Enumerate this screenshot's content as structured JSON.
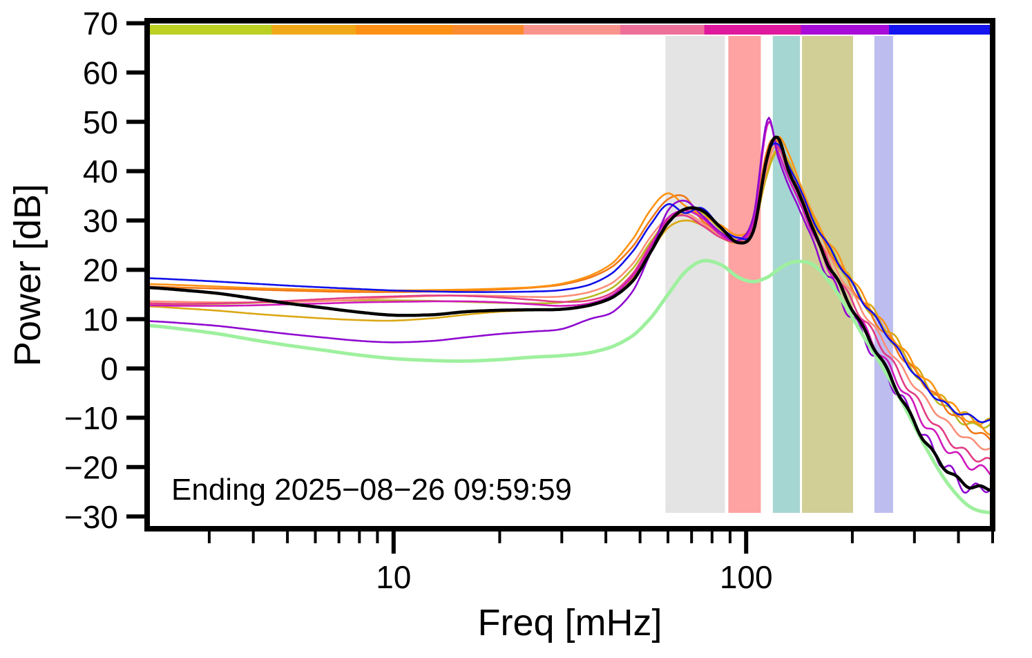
{
  "figure": {
    "background": "#ffffff",
    "frame_color": "#000000"
  },
  "chart_data": {
    "type": "line",
    "title": "",
    "xlabel": "Freq [mHz]",
    "ylabel": "Power [dB]",
    "annotation": "Ending 2025−08−26 09:59:59",
    "xscale": "log",
    "grid": false,
    "legend": "none",
    "xlim": [
      2,
      500
    ],
    "ylim": [
      -32.5,
      70.5
    ],
    "yticks": [
      70,
      60,
      50,
      40,
      30,
      20,
      10,
      0,
      -10,
      -20,
      -30
    ],
    "xticks": [
      10,
      100
    ],
    "x_minor_ticks": [
      3,
      4,
      5,
      6,
      7,
      8,
      9,
      20,
      30,
      40,
      50,
      60,
      70,
      80,
      90,
      200,
      300,
      400,
      500
    ],
    "colorbar_segments": [
      {
        "color": "#bcd021",
        "w": 0.145
      },
      {
        "color": "#f0a816",
        "w": 0.1
      },
      {
        "color": "#ff9013",
        "w": 0.115
      },
      {
        "color": "#fb8b2e",
        "w": 0.085
      },
      {
        "color": "#f9948d",
        "w": 0.115
      },
      {
        "color": "#ef6f9b",
        "w": 0.1
      },
      {
        "color": "#e0189d",
        "w": 0.115
      },
      {
        "color": "#a80cd8",
        "w": 0.105
      },
      {
        "color": "#1414f0",
        "w": 0.12
      }
    ],
    "bands": [
      {
        "fmin": 59,
        "fmax": 87,
        "color": "#e4e4e4"
      },
      {
        "fmin": 89,
        "fmax": 110,
        "color": "#ffa2a2"
      },
      {
        "fmin": 119,
        "fmax": 142,
        "color": "#a5d6d2"
      },
      {
        "fmin": 144,
        "fmax": 201,
        "color": "#d1ce96"
      },
      {
        "fmin": 231,
        "fmax": 261,
        "color": "#bdbdf0"
      }
    ],
    "x_mhz": [
      2,
      2.5,
      3.2,
      4,
      5,
      6.5,
      8,
      10,
      13,
      16,
      20,
      25,
      30,
      36,
      42,
      48,
      54,
      60,
      67,
      75,
      85,
      95,
      105,
      115,
      123,
      132,
      142,
      155,
      170,
      190,
      215,
      245,
      280,
      320,
      370,
      430,
      500
    ],
    "series": [
      {
        "name": "olive",
        "color": "#b9ba25",
        "width": 2.6,
        "ripple": 0.6,
        "values": [
          12.9,
          13.0,
          13.1,
          13.3,
          13.5,
          13.7,
          13.8,
          13.8,
          13.7,
          13.5,
          13.3,
          13.2,
          13.4,
          14.5,
          16.5,
          20.5,
          26.0,
          30.0,
          31.5,
          31.5,
          28.0,
          26.0,
          28.5,
          39.5,
          44.0,
          41.5,
          36.5,
          30.5,
          25.0,
          19.5,
          13.5,
          8.0,
          2.5,
          -3.5,
          -8.0,
          -11.5,
          -11.2
        ]
      },
      {
        "name": "goldenrod",
        "color": "#dba713",
        "width": 2.6,
        "ripple": 0.8,
        "values": [
          12.6,
          12.2,
          11.7,
          11.1,
          10.6,
          10.1,
          9.8,
          9.7,
          10.2,
          10.9,
          11.5,
          11.8,
          12.0,
          13.0,
          15.0,
          18.5,
          24.0,
          28.5,
          30.0,
          29.0,
          26.5,
          25.5,
          28.0,
          40.0,
          44.5,
          42.0,
          36.0,
          29.5,
          24.5,
          19.5,
          14.0,
          9.0,
          3.5,
          -2.5,
          -7.0,
          -10.0,
          -11.0
        ]
      },
      {
        "name": "orange-dark",
        "color": "#f07818",
        "width": 2.6,
        "ripple": 0.6,
        "values": [
          16.6,
          16.4,
          16.2,
          16.0,
          15.8,
          15.6,
          15.5,
          15.5,
          15.6,
          15.8,
          16.0,
          16.4,
          17.0,
          18.4,
          20.8,
          25.0,
          30.5,
          34.3,
          34.8,
          30.0,
          27.5,
          26.0,
          30.5,
          44.5,
          46.0,
          40.0,
          36.0,
          29.5,
          24.5,
          19.0,
          13.0,
          7.5,
          2.0,
          -3.0,
          -8.0,
          -12.0,
          -14.5
        ]
      },
      {
        "name": "orange",
        "color": "#ff9212",
        "width": 2.6,
        "ripple": 0.6,
        "values": [
          17.1,
          16.9,
          16.6,
          16.3,
          16.1,
          15.9,
          15.8,
          15.8,
          15.9,
          16.0,
          16.2,
          16.5,
          17.2,
          18.8,
          21.5,
          26.5,
          32.5,
          35.5,
          33.0,
          31.0,
          29.0,
          27.0,
          29.5,
          42.0,
          47.0,
          43.5,
          37.5,
          31.0,
          26.0,
          20.5,
          14.5,
          9.0,
          3.5,
          -2.0,
          -6.5,
          -10.5,
          -13.0
        ]
      },
      {
        "name": "salmon",
        "color": "#fb8e78",
        "width": 2.6,
        "ripple": 0.5,
        "values": [
          13.6,
          13.5,
          13.4,
          13.4,
          13.5,
          13.7,
          14.0,
          14.4,
          14.7,
          14.8,
          14.7,
          14.5,
          14.6,
          15.5,
          17.5,
          21.5,
          27.0,
          30.5,
          31.5,
          29.5,
          27.0,
          25.5,
          28.5,
          41.0,
          45.5,
          40.5,
          35.0,
          28.5,
          23.0,
          17.5,
          11.5,
          5.5,
          -0.5,
          -6.0,
          -11.0,
          -14.5,
          -16.5
        ]
      },
      {
        "name": "pink",
        "color": "#e23d85",
        "width": 2.6,
        "ripple": 0.7,
        "values": [
          13.2,
          13.1,
          13.2,
          13.4,
          13.7,
          14.1,
          14.4,
          14.6,
          14.8,
          14.7,
          14.4,
          13.9,
          13.5,
          13.8,
          15.5,
          19.5,
          25.5,
          30.0,
          31.0,
          29.0,
          26.5,
          25.8,
          29.0,
          43.5,
          45.0,
          39.5,
          34.5,
          28.0,
          22.0,
          16.0,
          10.0,
          4.0,
          -2.5,
          -8.5,
          -14.0,
          -17.5,
          -19.0
        ]
      },
      {
        "name": "magenta",
        "color": "#cf18bc",
        "width": 2.6,
        "ripple": 0.9,
        "values": [
          12.8,
          12.7,
          12.7,
          12.8,
          13.0,
          13.2,
          13.4,
          13.5,
          13.6,
          13.6,
          13.4,
          13.0,
          12.7,
          13.2,
          15.0,
          19.0,
          25.0,
          30.5,
          32.0,
          30.5,
          27.0,
          26.0,
          30.0,
          49.5,
          44.0,
          38.5,
          33.5,
          27.0,
          21.0,
          15.0,
          8.5,
          2.0,
          -4.5,
          -11.0,
          -16.0,
          -19.5,
          -21.0
        ]
      },
      {
        "name": "purple",
        "color": "#8f0ad0",
        "width": 2.6,
        "ripple": 1.3,
        "values": [
          9.6,
          9.2,
          8.6,
          7.8,
          7.0,
          6.2,
          5.6,
          5.3,
          5.6,
          6.3,
          7.0,
          7.5,
          8.0,
          10.0,
          11.5,
          16.0,
          24.0,
          32.0,
          34.0,
          31.0,
          27.5,
          26.0,
          31.0,
          50.5,
          43.0,
          37.0,
          32.0,
          25.5,
          19.0,
          13.0,
          6.5,
          0.0,
          -7.0,
          -14.0,
          -20.0,
          -24.5,
          -23.5
        ]
      },
      {
        "name": "blue",
        "color": "#1010e8",
        "width": 2.6,
        "ripple": 0.45,
        "values": [
          18.3,
          18.0,
          17.6,
          17.2,
          16.8,
          16.4,
          16.1,
          15.8,
          15.6,
          15.5,
          15.5,
          15.6,
          15.9,
          17.0,
          19.5,
          24.0,
          29.5,
          33.3,
          31.5,
          32.5,
          28.5,
          26.5,
          28.0,
          43.0,
          45.5,
          41.0,
          36.5,
          30.0,
          25.0,
          19.5,
          13.5,
          8.0,
          2.0,
          -3.5,
          -7.5,
          -9.8,
          -10.8
        ]
      },
      {
        "name": "lightgreen",
        "color": "#9ef09e",
        "width": 5.0,
        "ripple": 0,
        "values": [
          8.7,
          8.0,
          7.0,
          5.8,
          4.7,
          3.6,
          2.7,
          2.0,
          1.6,
          1.5,
          1.8,
          2.3,
          2.6,
          3.2,
          4.5,
          6.8,
          10.5,
          15.0,
          19.5,
          21.8,
          21.0,
          18.5,
          17.6,
          18.5,
          20.0,
          21.3,
          21.7,
          21.0,
          18.0,
          13.0,
          6.5,
          0.0,
          -7.5,
          -15.5,
          -23.0,
          -28.0,
          -29.3
        ]
      },
      {
        "name": "black-mean",
        "color": "#000000",
        "width": 4.5,
        "ripple": 0.45,
        "values": [
          16.4,
          15.9,
          15.2,
          14.2,
          13.2,
          12.2,
          11.4,
          10.8,
          10.9,
          11.5,
          11.8,
          11.9,
          12.0,
          12.8,
          14.5,
          18.0,
          24.0,
          29.5,
          32.3,
          32.0,
          28.5,
          25.5,
          28.0,
          43.0,
          46.8,
          40.0,
          35.0,
          28.0,
          21.5,
          15.0,
          8.0,
          1.0,
          -7.0,
          -14.5,
          -20.5,
          -23.8,
          -24.3
        ]
      }
    ]
  }
}
